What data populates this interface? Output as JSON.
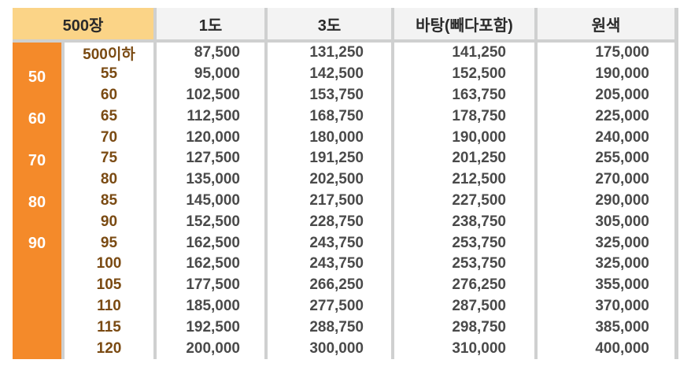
{
  "table": {
    "corner_label": "500장",
    "columns": [
      "1도",
      "3도",
      "바탕(빼다포함)",
      "원색"
    ],
    "side_labels": [
      "50",
      "60",
      "70",
      "80",
      "90"
    ],
    "rows": [
      {
        "size": "500이하",
        "values": [
          "87,500",
          "131,250",
          "141,250",
          "175,000"
        ]
      },
      {
        "size": "55",
        "values": [
          "95,000",
          "142,500",
          "152,500",
          "190,000"
        ]
      },
      {
        "size": "60",
        "values": [
          "102,500",
          "153,750",
          "163,750",
          "205,000"
        ]
      },
      {
        "size": "65",
        "values": [
          "112,500",
          "168,750",
          "178,750",
          "225,000"
        ]
      },
      {
        "size": "70",
        "values": [
          "120,000",
          "180,000",
          "190,000",
          "240,000"
        ]
      },
      {
        "size": "75",
        "values": [
          "127,500",
          "191,250",
          "201,250",
          "255,000"
        ]
      },
      {
        "size": "80",
        "values": [
          "135,000",
          "202,500",
          "212,500",
          "270,000"
        ]
      },
      {
        "size": "85",
        "values": [
          "145,000",
          "217,500",
          "227,500",
          "290,000"
        ]
      },
      {
        "size": "90",
        "values": [
          "152,500",
          "228,750",
          "238,750",
          "305,000"
        ]
      },
      {
        "size": "95",
        "values": [
          "162,500",
          "243,750",
          "253,750",
          "325,000"
        ]
      },
      {
        "size": "100",
        "values": [
          "162,500",
          "243,750",
          "253,750",
          "325,000"
        ]
      },
      {
        "size": "105",
        "values": [
          "177,500",
          "266,250",
          "276,250",
          "355,000"
        ]
      },
      {
        "size": "110",
        "values": [
          "185,000",
          "277,500",
          "287,500",
          "370,000"
        ]
      },
      {
        "size": "115",
        "values": [
          "192,500",
          "288,750",
          "298,750",
          "385,000"
        ]
      },
      {
        "size": "120",
        "values": [
          "200,000",
          "300,000",
          "310,000",
          "400,000"
        ]
      }
    ]
  },
  "colors": {
    "header_bg": "#f3f3f3",
    "corner_bg": "#fbd487",
    "side_bg": "#f48a2a",
    "size_text": "#7a4a12",
    "value_text": "#4a4a4a",
    "separator": "#cfd0d0"
  }
}
